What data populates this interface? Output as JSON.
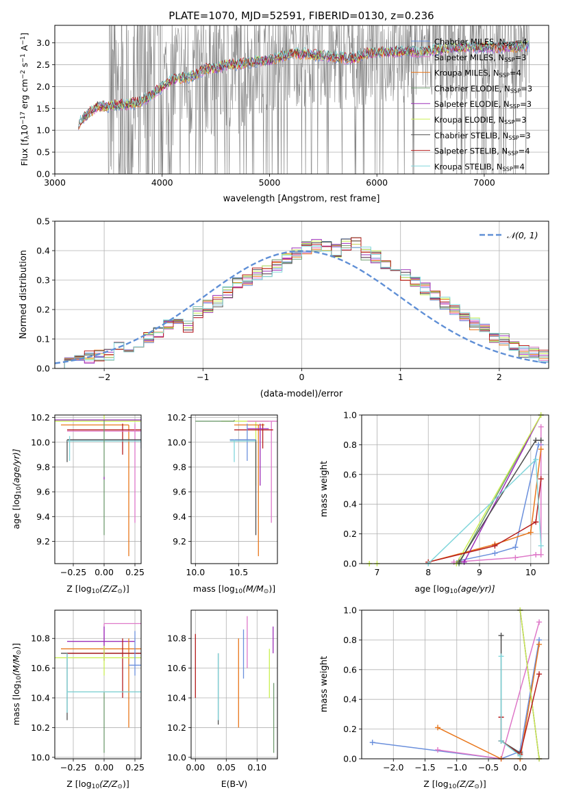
{
  "figure_title": "PLATE=1070, MJD=52591, FIBERID=0130, z=0.236",
  "colors": {
    "Chabrier MILES": "#6a8fdc",
    "Salpeter MILES": "#de77c8",
    "Kroupa MILES": "#e8761b",
    "Chabrier ELODIE": "#6f9b6f",
    "Salpeter ELODIE": "#9b2db8",
    "Kroupa ELODIE": "#c9ef52",
    "Chabrier STELIB": "#4d4d4d",
    "Salpeter STELIB": "#b51c1c",
    "Kroupa STELIB": "#80d6db",
    "data": "#808080",
    "gaussian": "#5f8fd6"
  },
  "chart_data": [
    {
      "id": "spectrum",
      "type": "line",
      "xlabel": "wavelength [Angstrom, rest frame]",
      "ylabel": "Flux [f",
      "ylabel_sub": "λ",
      "ylabel_rest": "10",
      "ylabel_exp1": "−17",
      "ylabel_mid": " erg cm",
      "ylabel_exp2": "−2",
      "ylabel_mid2": " s",
      "ylabel_exp3": "−1",
      "ylabel_mid3": " A",
      "ylabel_exp4": "−1",
      "ylabel_end": "]",
      "xlim": [
        3000,
        7600
      ],
      "ylim": [
        0,
        3.4
      ],
      "xticks": [
        "3000",
        "4000",
        "5000",
        "6000",
        "7000"
      ],
      "xtick_values": [
        3000,
        4000,
        5000,
        6000,
        7000
      ],
      "yticks": [
        "0.0",
        "0.5",
        "1.0",
        "1.5",
        "2.0",
        "2.5",
        "3.0"
      ],
      "ytick_values": [
        0,
        0.5,
        1.0,
        1.5,
        2.0,
        2.5,
        3.0
      ],
      "continuum": [
        [
          3220,
          1.15
        ],
        [
          3300,
          1.35
        ],
        [
          3400,
          1.55
        ],
        [
          3500,
          1.55
        ],
        [
          3600,
          1.58
        ],
        [
          3700,
          1.6
        ],
        [
          3800,
          1.65
        ],
        [
          3900,
          1.8
        ],
        [
          4000,
          2.0
        ],
        [
          4100,
          2.15
        ],
        [
          4200,
          2.2
        ],
        [
          4300,
          2.25
        ],
        [
          4400,
          2.4
        ],
        [
          4500,
          2.42
        ],
        [
          4600,
          2.5
        ],
        [
          4700,
          2.5
        ],
        [
          4800,
          2.55
        ],
        [
          4900,
          2.58
        ],
        [
          5000,
          2.6
        ],
        [
          5100,
          2.68
        ],
        [
          5200,
          2.75
        ],
        [
          5300,
          2.75
        ],
        [
          5400,
          2.72
        ],
        [
          5500,
          2.7
        ],
        [
          5600,
          2.68
        ],
        [
          5700,
          2.65
        ],
        [
          5800,
          2.65
        ],
        [
          5900,
          2.75
        ],
        [
          6000,
          2.78
        ],
        [
          6100,
          2.78
        ],
        [
          6200,
          2.8
        ],
        [
          6300,
          2.8
        ],
        [
          6400,
          2.8
        ],
        [
          6500,
          2.82
        ],
        [
          6600,
          2.85
        ],
        [
          6700,
          2.88
        ],
        [
          6800,
          2.9
        ],
        [
          6900,
          2.9
        ],
        [
          7000,
          2.9
        ],
        [
          7100,
          2.9
        ],
        [
          7200,
          2.9
        ],
        [
          7300,
          2.9
        ],
        [
          7400,
          2.92
        ]
      ],
      "legend": [
        {
          "name": "Chabrier MILES",
          "n": "4"
        },
        {
          "name": "Salpeter MILES",
          "n": "3"
        },
        {
          "name": "Kroupa MILES",
          "n": "4"
        },
        {
          "name": "Chabrier ELODIE",
          "n": "3"
        },
        {
          "name": "Salpeter ELODIE",
          "n": "3"
        },
        {
          "name": "Kroupa ELODIE",
          "n": "3"
        },
        {
          "name": "Chabrier STELIB",
          "n": "3"
        },
        {
          "name": "Salpeter STELIB",
          "n": "4"
        },
        {
          "name": "Kroupa STELIB",
          "n": "4"
        }
      ],
      "legend_prefix": "N",
      "legend_sub": "SSP"
    },
    {
      "id": "residuals",
      "type": "histogram",
      "xlabel": "(data-model)/error",
      "ylabel": "Normed distribution",
      "xlim": [
        -2.5,
        2.5
      ],
      "ylim": [
        0,
        0.5
      ],
      "xticks": [
        "−2",
        "−1",
        "0",
        "1",
        "2"
      ],
      "xtick_values": [
        -2,
        -1,
        0,
        1,
        2
      ],
      "yticks": [
        "0.0",
        "0.1",
        "0.2",
        "0.3",
        "0.4",
        "0.5"
      ],
      "ytick_values": [
        0,
        0.1,
        0.2,
        0.3,
        0.4,
        0.5
      ],
      "bin_edges_start": -2.5,
      "bin_width": 0.1,
      "base_values": [
        0.02,
        0.025,
        0.03,
        0.04,
        0.045,
        0.05,
        0.07,
        0.075,
        0.08,
        0.1,
        0.12,
        0.15,
        0.16,
        0.14,
        0.19,
        0.21,
        0.23,
        0.26,
        0.29,
        0.3,
        0.32,
        0.33,
        0.35,
        0.37,
        0.39,
        0.41,
        0.42,
        0.41,
        0.4,
        0.42,
        0.43,
        0.39,
        0.38,
        0.36,
        0.34,
        0.32,
        0.3,
        0.27,
        0.25,
        0.22,
        0.2,
        0.17,
        0.15,
        0.13,
        0.11,
        0.1,
        0.08,
        0.06,
        0.05,
        0.04
      ],
      "legend_label": "𝒩(0, 1)"
    },
    {
      "id": "age_vs_Z",
      "type": "errorbar",
      "xlabel": "Z [log",
      "xlabel_sub": "10",
      "xlabel_rest": "(Z/Z",
      "xlabel_sub2": "⊙",
      "xlabel_end": ")]",
      "ylabel": "age  [log",
      "ylabel_sub": "10",
      "ylabel_rest": "(age/yr)]",
      "xlim": [
        -0.4,
        0.3
      ],
      "ylim": [
        9.02,
        10.22
      ],
      "xticks": [
        "−0.25",
        "0.00",
        "0.25"
      ],
      "xtick_values": [
        -0.25,
        0,
        0.25
      ],
      "yticks": [
        "9.2",
        "9.4",
        "9.6",
        "9.8",
        "10.0",
        "10.2"
      ],
      "ytick_values": [
        9.2,
        9.4,
        9.6,
        9.8,
        10.0,
        10.2
      ]
    },
    {
      "id": "age_vs_mass",
      "type": "errorbar",
      "xlabel": "mass [log",
      "xlabel_sub": "10",
      "xlabel_rest": "(M/M",
      "xlabel_sub2": "⊙",
      "xlabel_end": ")]",
      "xlim": [
        9.95,
        10.95
      ],
      "ylim": [
        9.02,
        10.22
      ],
      "xticks": [
        "10.0",
        "10.5"
      ],
      "xtick_values": [
        10.0,
        10.5
      ],
      "yticks": [
        "9.2",
        "9.4",
        "9.6",
        "9.8",
        "10.0",
        "10.2"
      ],
      "ytick_values": [
        9.2,
        9.4,
        9.6,
        9.8,
        10.0,
        10.2
      ]
    },
    {
      "id": "massweight_vs_age",
      "type": "line",
      "xlabel": "age  [log",
      "xlabel_sub": "10",
      "xlabel_rest": "(age/yr)]",
      "ylabel": "mass weight",
      "xlim": [
        6.7,
        10.35
      ],
      "ylim": [
        0,
        1
      ],
      "xticks": [
        "7",
        "8",
        "9",
        "10"
      ],
      "xtick_values": [
        7,
        8,
        9,
        10
      ],
      "yticks": [
        "0.0",
        "0.2",
        "0.4",
        "0.6",
        "0.8",
        "1.0"
      ],
      "ytick_values": [
        0,
        0.2,
        0.4,
        0.6,
        0.8,
        1.0
      ],
      "series": [
        {
          "name": "Chabrier MILES",
          "x": [
            8.6,
            9.3,
            9.7,
            10.15,
            10.2
          ],
          "y": [
            0.02,
            0.07,
            0.11,
            0.8,
            0.8
          ]
        },
        {
          "name": "Salpeter MILES",
          "x": [
            8.5,
            9.7,
            10.1,
            10.2,
            10.2
          ],
          "y": [
            0.01,
            0.04,
            0.06,
            0.06,
            0.92
          ]
        },
        {
          "name": "Kroupa MILES",
          "x": [
            8.0,
            9.3,
            10.0,
            10.2
          ],
          "y": [
            0.01,
            0.13,
            0.21,
            0.77
          ]
        },
        {
          "name": "Chabrier ELODIE",
          "x": [
            8.6,
            10.2
          ],
          "y": [
            0.0,
            1.0
          ]
        },
        {
          "name": "Salpeter ELODIE",
          "x": [
            8.7,
            10.2
          ],
          "y": [
            0.01,
            1.0
          ]
        },
        {
          "name": "Kroupa ELODIE",
          "x": [
            8.55,
            10.2
          ],
          "y": [
            0.0,
            1.0
          ]
        },
        {
          "name": "Chabrier STELIB",
          "x": [
            8.6,
            10.1,
            10.2
          ],
          "y": [
            0.01,
            0.83,
            0.83
          ]
        },
        {
          "name": "Salpeter STELIB",
          "x": [
            8.0,
            9.3,
            10.1,
            10.2
          ],
          "y": [
            0.01,
            0.12,
            0.28,
            0.57
          ]
        },
        {
          "name": "Kroupa STELIB",
          "x": [
            8.0,
            10.1,
            10.2
          ],
          "y": [
            0.0,
            0.7,
            0.12
          ]
        }
      ],
      "extra_points": [
        {
          "x": 6.85,
          "y": 0.0
        },
        {
          "x": 7.0,
          "y": 0.0
        }
      ]
    },
    {
      "id": "mass_vs_Z",
      "type": "errorbar",
      "xlabel": "Z [log",
      "xlabel_sub": "10",
      "xlabel_rest": "(Z/Z",
      "xlabel_sub2": "⊙",
      "xlabel_end": ")]",
      "ylabel": "mass [log",
      "ylabel_sub": "10",
      "ylabel_rest": "(M/M",
      "ylabel_sub2": "⊙",
      "ylabel_end": ")]",
      "xlim": [
        -0.4,
        0.3
      ],
      "ylim": [
        9.99,
        10.99
      ],
      "xticks": [
        "−0.25",
        "0.00",
        "0.25"
      ],
      "xtick_values": [
        -0.25,
        0,
        0.25
      ],
      "yticks": [
        "10.0",
        "10.2",
        "10.4",
        "10.6",
        "10.8"
      ],
      "ytick_values": [
        10.0,
        10.2,
        10.4,
        10.6,
        10.8
      ]
    },
    {
      "id": "mass_vs_EBV",
      "type": "errorbar",
      "xlabel": "E(B-V)",
      "xlim": [
        -0.007,
        0.133
      ],
      "ylim": [
        9.99,
        10.99
      ],
      "xticks": [
        "0.00",
        "0.05",
        "0.10"
      ],
      "xtick_values": [
        0,
        0.05,
        0.1
      ],
      "yticks": [
        "10.0",
        "10.2",
        "10.4",
        "10.6",
        "10.8"
      ],
      "ytick_values": [
        10.0,
        10.2,
        10.4,
        10.6,
        10.8
      ]
    },
    {
      "id": "massweight_vs_Z",
      "type": "line",
      "xlabel": "Z [log",
      "xlabel_sub": "10",
      "xlabel_rest": "(Z/Z",
      "xlabel_sub2": "⊙",
      "xlabel_end": ")]",
      "ylabel": "mass weight",
      "xlim": [
        -2.5,
        0.45
      ],
      "ylim": [
        0,
        1
      ],
      "xticks": [
        "−2.0",
        "−1.5",
        "−1.0",
        "−0.5",
        "0.0"
      ],
      "xtick_values": [
        -2.0,
        -1.5,
        -1.0,
        -0.5,
        0
      ],
      "yticks": [
        "0.0",
        "0.2",
        "0.4",
        "0.6",
        "0.8",
        "1.0"
      ],
      "ytick_values": [
        0,
        0.2,
        0.4,
        0.6,
        0.8,
        1.0
      ],
      "series": [
        {
          "name": "Chabrier MILES",
          "x": [
            -2.33,
            -0.3,
            0.0,
            0.3
          ],
          "y": [
            0.11,
            0.0,
            0.05,
            0.8
          ]
        },
        {
          "name": "Salpeter MILES",
          "x": [
            -1.3,
            -0.3,
            0.3
          ],
          "y": [
            0.06,
            0.0,
            0.92
          ]
        },
        {
          "name": "Kroupa MILES",
          "x": [
            -1.3,
            -0.3,
            0.0,
            0.3
          ],
          "y": [
            0.21,
            0.0,
            0.0,
            0.77
          ]
        },
        {
          "name": "Chabrier ELODIE",
          "x": [
            0.0,
            0.3
          ],
          "y": [
            1.0,
            0.0
          ]
        },
        {
          "name": "Salpeter ELODIE",
          "x": [
            0.0,
            0.3
          ],
          "y": [
            1.0,
            0.0
          ]
        },
        {
          "name": "Kroupa ELODIE",
          "x": [
            0.0,
            0.3
          ],
          "y": [
            1.0,
            0.0
          ]
        },
        {
          "name": "Chabrier STELIB",
          "x": [
            -0.3,
            -0.3,
            0.0
          ],
          "y": [
            0.83,
            0.12,
            0.04
          ]
        },
        {
          "name": "Salpeter STELIB",
          "x": [
            -0.3,
            -0.3,
            0.0,
            0.3
          ],
          "y": [
            0.28,
            0.12,
            0.03,
            0.57
          ]
        },
        {
          "name": "Kroupa STELIB",
          "x": [
            -0.3,
            -0.3,
            0.0
          ],
          "y": [
            0.69,
            0.12,
            0.02
          ]
        }
      ]
    }
  ]
}
